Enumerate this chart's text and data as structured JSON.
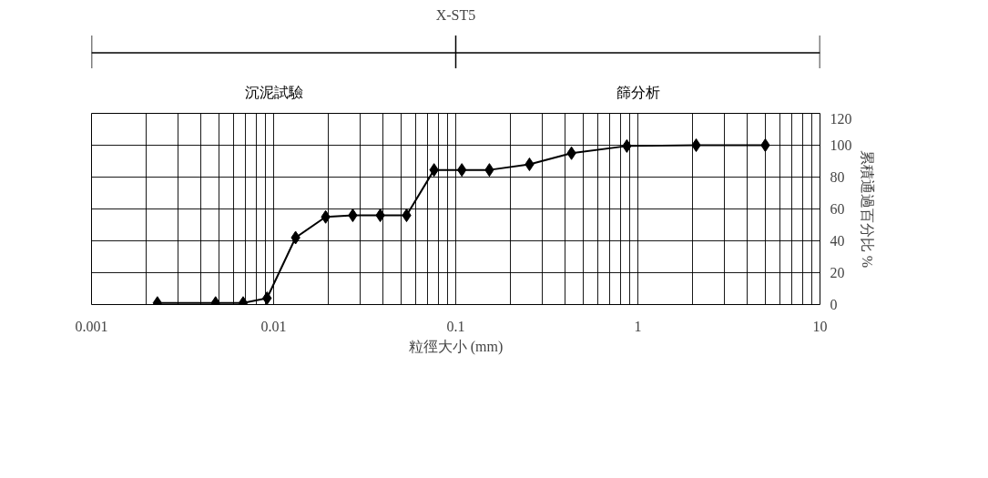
{
  "chart_data": {
    "type": "line",
    "title": "X-ST5",
    "xlabel": "粒徑大小 (mm)",
    "ylabel": "累積通過百分比 %",
    "x": [
      0.0023,
      0.0048,
      0.0068,
      0.0092,
      0.0132,
      0.0193,
      0.0272,
      0.0385,
      0.0537,
      0.076,
      0.108,
      0.153,
      0.254,
      0.432,
      0.87,
      2.09,
      5.01
    ],
    "series": [
      {
        "color": "#000000",
        "values": [
          1,
          1,
          1,
          4,
          42,
          55,
          56,
          56,
          56,
          84.5,
          84.5,
          84.5,
          88,
          95,
          99.5,
          100,
          100
        ]
      }
    ],
    "log": "x",
    "xlim": [
      0.001,
      10
    ],
    "xticks": [
      0.001,
      0.01,
      0.1,
      1,
      10
    ],
    "ylim": [
      0,
      120
    ],
    "yticks": [
      0,
      20,
      40,
      60,
      80,
      100,
      120
    ],
    "grid": true,
    "marker": "diamond",
    "line_style": "solid",
    "annotations": [
      "沉泥試驗",
      "篩分析"
    ]
  }
}
